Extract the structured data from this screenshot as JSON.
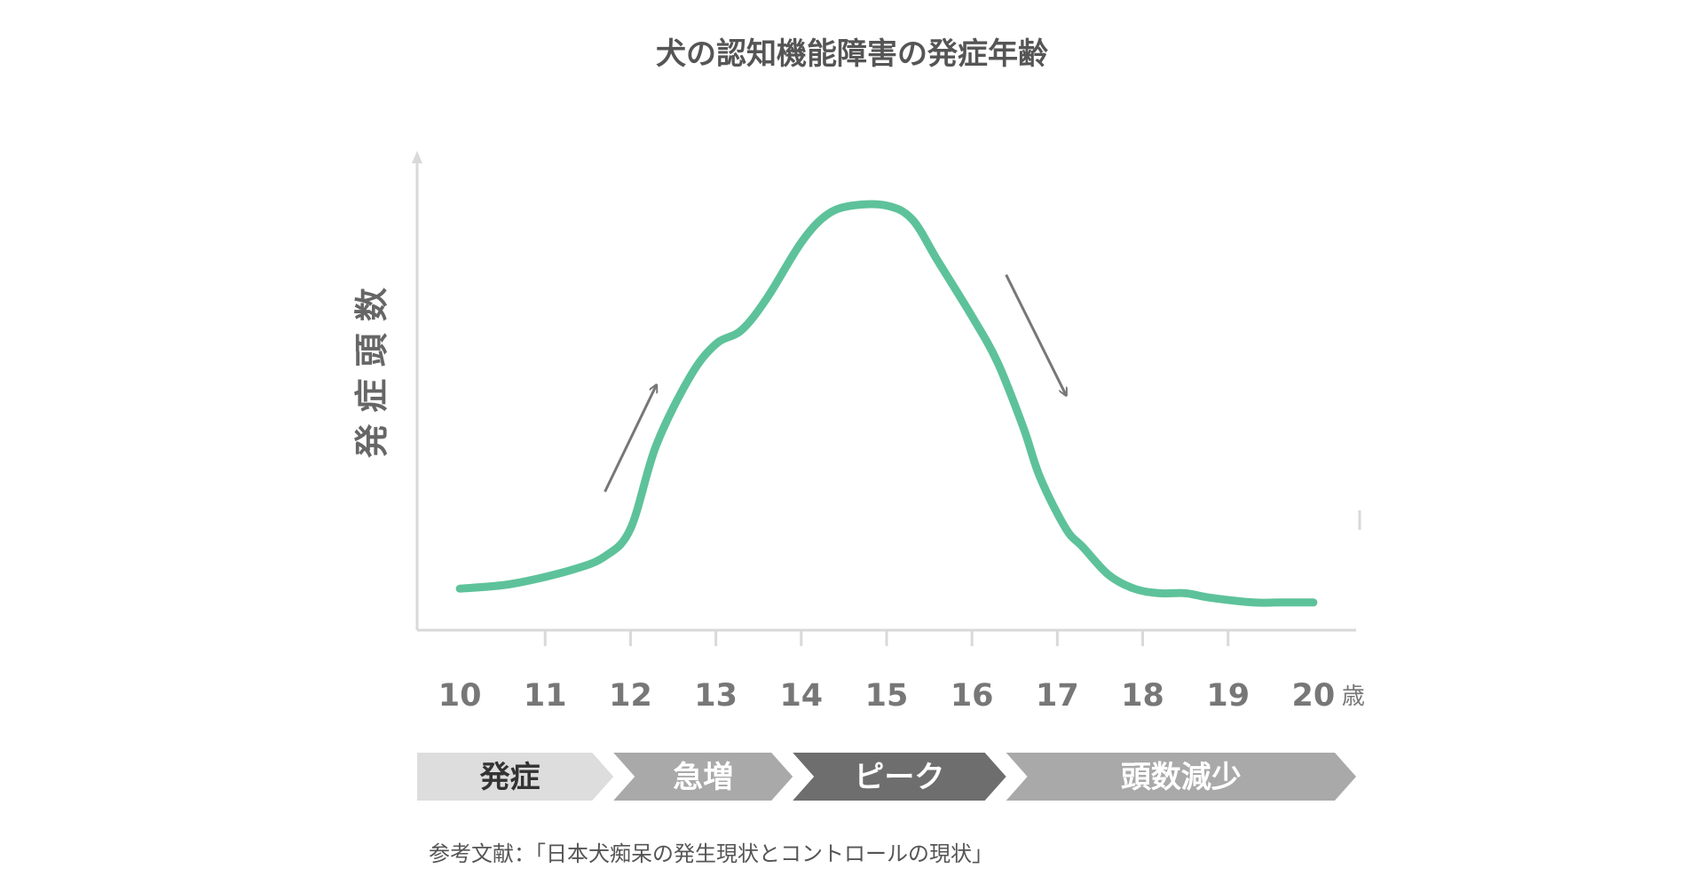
{
  "chart_data": {
    "type": "line",
    "title": "犬の認知機能障害の発症年齢",
    "ylabel": "発 症 頭 数",
    "xlabel": "",
    "x_unit": "歳",
    "x_ticks": [
      10,
      11,
      12,
      13,
      14,
      15,
      16,
      17,
      18,
      19,
      20
    ],
    "xlim": [
      9.5,
      20.5
    ],
    "ylim": [
      0,
      100
    ],
    "grid": false,
    "line_color": "#5DC29A",
    "x": [
      10.0,
      10.6,
      11.3,
      11.7,
      12.0,
      12.3,
      12.7,
      13.0,
      13.3,
      13.6,
      14.0,
      14.3,
      14.6,
      15.0,
      15.3,
      15.6,
      16.0,
      16.3,
      16.6,
      16.8,
      17.1,
      17.3,
      17.6,
      17.9,
      18.2,
      18.5,
      18.8,
      19.3,
      19.6,
      20.0
    ],
    "y": [
      9,
      10,
      13,
      16,
      22,
      40,
      55,
      62,
      65,
      72,
      84,
      90,
      92,
      92,
      89,
      80,
      68,
      58,
      44,
      33,
      22,
      18,
      12,
      9,
      8,
      8,
      7,
      6,
      6,
      6
    ],
    "annotations": [
      {
        "type": "arrow",
        "direction": "up",
        "from_x": 11.7,
        "from_y": 30,
        "to_x": 12.3,
        "to_y": 53
      },
      {
        "type": "arrow",
        "direction": "down",
        "from_x": 16.4,
        "from_y": 77,
        "to_x": 17.1,
        "to_y": 51
      }
    ],
    "phases": [
      {
        "label": "発症",
        "color": "#DDDDDD",
        "text_color": "#333333",
        "from_x": 9.5,
        "to_x": 11.8
      },
      {
        "label": "急増",
        "color": "#A9A9A9",
        "text_color": "#FFFFFF",
        "from_x": 11.8,
        "to_x": 13.9
      },
      {
        "label": "ピーク",
        "color": "#6E6E6E",
        "text_color": "#FFFFFF",
        "from_x": 13.9,
        "to_x": 16.4
      },
      {
        "label": "頭数減少",
        "color": "#A9A9A9",
        "text_color": "#FFFFFF",
        "from_x": 16.4,
        "to_x": 20.5
      }
    ],
    "source": "参考文献：「日本犬痴呆の発生現状とコントロールの現状」"
  }
}
